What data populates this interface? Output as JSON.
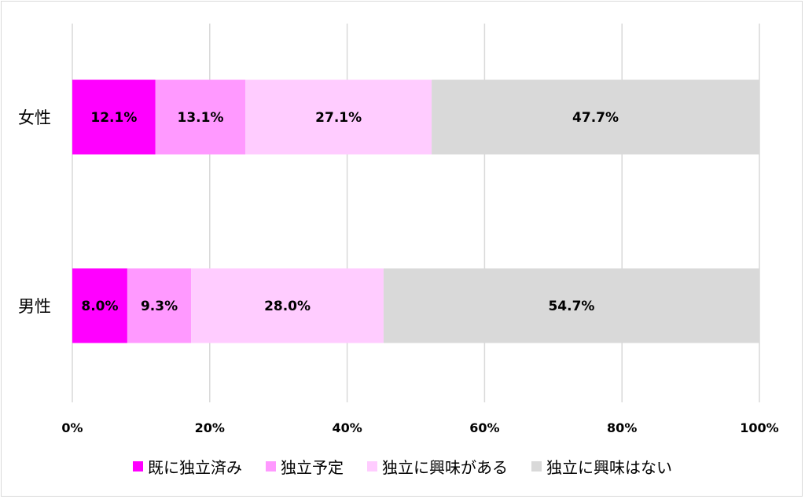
{
  "chart_data": {
    "type": "bar",
    "orientation": "horizontal",
    "stacked": "percent",
    "categories": [
      "女性",
      "男性"
    ],
    "series": [
      {
        "name": "既に独立済み",
        "values": [
          12.1,
          8.0
        ],
        "labels": [
          "12.1%",
          "8.0%"
        ],
        "color": "#ff00ff"
      },
      {
        "name": "独立予定",
        "values": [
          13.1,
          9.3
        ],
        "labels": [
          "13.1%",
          "9.3%"
        ],
        "color": "#ff99ff"
      },
      {
        "name": "独立に興味がある",
        "values": [
          27.1,
          28.0
        ],
        "labels": [
          "27.1%",
          "28.0%"
        ],
        "color": "#ffccff"
      },
      {
        "name": "独立に興味はない",
        "values": [
          47.7,
          54.7
        ],
        "labels": [
          "47.7%",
          "54.7%"
        ],
        "color": "#d9d9d9"
      }
    ],
    "x_ticks": [
      "0%",
      "20%",
      "40%",
      "60%",
      "80%",
      "100%"
    ],
    "xlim": [
      0,
      100
    ],
    "grid": true,
    "legend_position": "bottom"
  }
}
